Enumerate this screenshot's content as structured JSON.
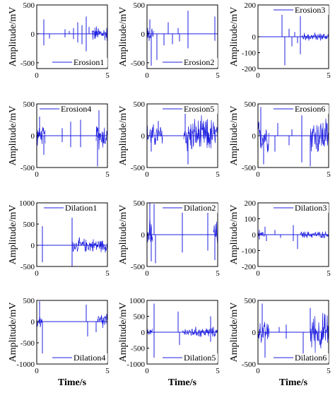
{
  "style": {
    "signal_color": "#1f1fe0",
    "axis_color": "#000000"
  },
  "panel_axis_labels": {
    "xlabel": "Time/s",
    "ylabel": "Amplitude/mV"
  },
  "chart_data": [
    {
      "type": "line",
      "legend": "Erosion1",
      "legend_position": "bottom-right",
      "xlim": [
        0,
        5
      ],
      "ylim": [
        -600,
        500
      ],
      "xticks": [
        "0",
        "5"
      ],
      "yticks": [
        {
          "v": 500,
          "t": "500"
        },
        {
          "v": 0,
          "t": "0"
        },
        {
          "v": -500,
          "t": "-500"
        }
      ],
      "xlabel": "",
      "ylabel": "Amplitude/mV",
      "signal": {
        "segments": [
          {
            "x": [
              3.9,
              5
            ],
            "amp": 130
          }
        ],
        "spikes": [
          {
            "x": 0.5,
            "y": 250
          },
          {
            "x": 0.5,
            "y": -200
          },
          {
            "x": 0.9,
            "y": -80
          },
          {
            "x": 2.0,
            "y": 80
          },
          {
            "x": 2.0,
            "y": -60
          },
          {
            "x": 2.3,
            "y": 50
          },
          {
            "x": 2.6,
            "y": 100
          },
          {
            "x": 2.6,
            "y": -90
          },
          {
            "x": 2.9,
            "y": 200
          },
          {
            "x": 2.9,
            "y": -150
          },
          {
            "x": 3.2,
            "y": 150
          },
          {
            "x": 3.2,
            "y": -180
          },
          {
            "x": 3.5,
            "y": 300
          },
          {
            "x": 3.5,
            "y": -300
          },
          {
            "x": 3.7,
            "y": 120
          }
        ]
      }
    },
    {
      "type": "line",
      "legend": "Erosion2",
      "legend_position": "bottom-right",
      "xlim": [
        0,
        5
      ],
      "ylim": [
        -600,
        500
      ],
      "xticks": [
        "0",
        "5"
      ],
      "yticks": [
        {
          "v": 500,
          "t": "500"
        },
        {
          "v": 0,
          "t": "0"
        },
        {
          "v": -500,
          "t": "-500"
        }
      ],
      "xlabel": "",
      "ylabel": "Amplitude/mV",
      "signal": {
        "segments": [
          {
            "x": [
              0,
              0.5
            ],
            "amp": 120
          },
          {
            "x": 4.8,
            "amp": 0
          }
        ],
        "spikes": [
          {
            "x": 0.2,
            "y": 250
          },
          {
            "x": 0.3,
            "y": -550
          },
          {
            "x": 0.7,
            "y": -450
          },
          {
            "x": 1.2,
            "y": -200
          },
          {
            "x": 1.5,
            "y": 200
          },
          {
            "x": 1.8,
            "y": -180
          },
          {
            "x": 2.2,
            "y": 100
          },
          {
            "x": 2.3,
            "y": -130
          },
          {
            "x": 2.9,
            "y": 400
          },
          {
            "x": 2.9,
            "y": -250
          },
          {
            "x": 4.8,
            "y": 300
          },
          {
            "x": 4.8,
            "y": -120
          }
        ]
      }
    },
    {
      "type": "line",
      "legend": "Erosion3",
      "legend_position": "top-right",
      "xlim": [
        0,
        5
      ],
      "ylim": [
        -200,
        200
      ],
      "xticks": [
        "0",
        "5"
      ],
      "yticks": [
        {
          "v": 200,
          "t": "200"
        },
        {
          "v": 0,
          "t": "0"
        },
        {
          "v": -100,
          "t": "-100"
        },
        {
          "v": -200,
          "t": "-200"
        }
      ],
      "xlabel": "",
      "ylabel": "Amplitude/mV",
      "signal": {
        "segments": [
          {
            "x": [
              3.1,
              5
            ],
            "amp": 25
          }
        ],
        "spikes": [
          {
            "x": 1.7,
            "y": 180
          },
          {
            "x": 1.9,
            "y": -180
          },
          {
            "x": 2.2,
            "y": 50
          },
          {
            "x": 2.4,
            "y": -60
          },
          {
            "x": 2.6,
            "y": 30
          },
          {
            "x": 2.8,
            "y": -40
          },
          {
            "x": 3.0,
            "y": 90
          },
          {
            "x": 3.0,
            "y": -110
          },
          {
            "x": 3.0,
            "y": 130
          }
        ]
      }
    },
    {
      "type": "line",
      "legend": "Erosion4",
      "legend_position": "top-left",
      "xlim": [
        0,
        5
      ],
      "ylim": [
        -500,
        500
      ],
      "xticks": [
        "0",
        "5"
      ],
      "yticks": [
        {
          "v": 500,
          "t": "500"
        },
        {
          "v": 0,
          "t": "0"
        },
        {
          "v": -500,
          "t": "-500"
        }
      ],
      "xlabel": "",
      "ylabel": "Amplitude/mV",
      "signal": {
        "segments": [
          {
            "x": [
              0,
              0.6
            ],
            "amp": 130
          },
          {
            "x": [
              4.2,
              5
            ],
            "amp": 200
          }
        ],
        "spikes": [
          {
            "x": 0.2,
            "y": 300
          },
          {
            "x": 0.5,
            "y": -300
          },
          {
            "x": 1.8,
            "y": 120
          },
          {
            "x": 1.8,
            "y": -100
          },
          {
            "x": 2.4,
            "y": 220
          },
          {
            "x": 2.4,
            "y": -180
          },
          {
            "x": 3.1,
            "y": 250
          },
          {
            "x": 3.1,
            "y": -180
          },
          {
            "x": 4.3,
            "y": -480
          },
          {
            "x": 4.4,
            "y": 400
          }
        ]
      }
    },
    {
      "type": "line",
      "legend": "Erosion5",
      "legend_position": "top-right",
      "xlim": [
        0,
        5
      ],
      "ylim": [
        -500,
        500
      ],
      "xticks": [
        "0",
        "5"
      ],
      "yticks": [
        {
          "v": 500,
          "t": "500"
        },
        {
          "v": 0,
          "t": "0"
        },
        {
          "v": -500,
          "t": "-500"
        }
      ],
      "xlabel": "",
      "ylabel": "Amplitude/mV",
      "signal": {
        "segments": [
          {
            "x": [
              0,
              1.1
            ],
            "amp": 170
          },
          {
            "x": [
              2.6,
              5
            ],
            "amp": 260
          }
        ],
        "spikes": [
          {
            "x": 2.7,
            "y": 450
          },
          {
            "x": 2.9,
            "y": -450
          },
          {
            "x": 0.3,
            "y": -250
          },
          {
            "x": 0.8,
            "y": 230
          }
        ]
      }
    },
    {
      "type": "line",
      "legend": "Erosion6",
      "legend_position": "top-right",
      "xlim": [
        0,
        5
      ],
      "ylim": [
        -500,
        500
      ],
      "xticks": [
        "0",
        "5"
      ],
      "yticks": [
        {
          "v": 500,
          "t": "500"
        },
        {
          "v": 0,
          "t": "0"
        },
        {
          "v": -500,
          "t": "-500"
        }
      ],
      "xlabel": "",
      "ylabel": "Amplitude/mV",
      "signal": {
        "segments": [
          {
            "x": [
              0,
              0.8
            ],
            "amp": 230
          },
          {
            "x": [
              3.7,
              5
            ],
            "amp": 280
          }
        ],
        "spikes": [
          {
            "x": 0.2,
            "y": 450
          },
          {
            "x": 0.4,
            "y": -450
          },
          {
            "x": 1.2,
            "y": -250
          },
          {
            "x": 1.4,
            "y": 200
          },
          {
            "x": 2.2,
            "y": -150
          },
          {
            "x": 2.4,
            "y": 100
          },
          {
            "x": 3.1,
            "y": 320
          },
          {
            "x": 3.1,
            "y": -420
          },
          {
            "x": 3.7,
            "y": -480
          }
        ]
      }
    },
    {
      "type": "line",
      "legend": "Dilation1",
      "legend_position": "top-center",
      "xlim": [
        0,
        5
      ],
      "ylim": [
        -500,
        1000
      ],
      "xticks": [
        "0",
        "5"
      ],
      "yticks": [
        {
          "v": 1000,
          "t": "1000"
        },
        {
          "v": 500,
          "t": "500"
        },
        {
          "v": 0,
          "t": "0"
        },
        {
          "v": -500,
          "t": "-500"
        }
      ],
      "xlabel": "",
      "ylabel": "Amplitude/mV",
      "signal": {
        "segments": [
          {
            "x": [
              2.5,
              5
            ],
            "amp": 150
          }
        ],
        "spikes": [
          {
            "x": 0.4,
            "y": 450
          },
          {
            "x": 0.4,
            "y": -400
          },
          {
            "x": 2.5,
            "y": -500
          },
          {
            "x": 2.5,
            "y": 650
          }
        ]
      }
    },
    {
      "type": "line",
      "legend": "Dilation2",
      "legend_position": "top-right",
      "xlim": [
        0,
        5
      ],
      "ylim": [
        -500,
        500
      ],
      "xticks": [
        "0",
        "5"
      ],
      "yticks": [
        {
          "v": 500,
          "t": "500"
        },
        {
          "v": 0,
          "t": "0"
        },
        {
          "v": -500,
          "t": "-500"
        }
      ],
      "xlabel": "",
      "ylabel": "Amplitude/mV",
      "signal": {
        "segments": [
          {
            "x": [
              0,
              0.4
            ],
            "amp": 250
          },
          {
            "x": [
              4.7,
              5
            ],
            "amp": 200
          }
        ],
        "spikes": [
          {
            "x": 0.2,
            "y": 500
          },
          {
            "x": 0.3,
            "y": -420
          },
          {
            "x": 0.5,
            "y": 480
          },
          {
            "x": 0.6,
            "y": -450
          },
          {
            "x": 2.5,
            "y": 420
          },
          {
            "x": 2.5,
            "y": -280
          },
          {
            "x": 4.3,
            "y": 400
          },
          {
            "x": 4.3,
            "y": -250
          },
          {
            "x": 4.8,
            "y": -400
          }
        ]
      }
    },
    {
      "type": "line",
      "legend": "Dilation3",
      "legend_position": "top-right",
      "xlim": [
        0,
        5
      ],
      "ylim": [
        -200,
        200
      ],
      "xticks": [
        "0",
        "5"
      ],
      "yticks": [
        {
          "v": 200,
          "t": "200"
        },
        {
          "v": 100,
          "t": "100"
        },
        {
          "v": 0,
          "t": "0"
        },
        {
          "v": -100,
          "t": "-100"
        },
        {
          "v": -200,
          "t": "-200"
        }
      ],
      "xlabel": "",
      "ylabel": "Amplitude/mV",
      "signal": {
        "segments": [
          {
            "x": [
              3.0,
              5
            ],
            "amp": 20
          },
          {
            "x": [
              0,
              0.5
            ],
            "amp": 15
          }
        ],
        "spikes": [
          {
            "x": 0.1,
            "y": 30
          },
          {
            "x": 0.1,
            "y": -30
          },
          {
            "x": 0.5,
            "y": 50
          },
          {
            "x": 0.6,
            "y": -40
          },
          {
            "x": 1.2,
            "y": 30
          },
          {
            "x": 1.6,
            "y": -20
          },
          {
            "x": 2.5,
            "y": 60
          },
          {
            "x": 2.5,
            "y": -40
          },
          {
            "x": 2.8,
            "y": -90
          }
        ]
      }
    },
    {
      "type": "line",
      "legend": "Dilation4",
      "legend_position": "bottom-right",
      "xlim": [
        0,
        5
      ],
      "ylim": [
        -1000,
        500
      ],
      "xticks": [
        "0",
        "5"
      ],
      "yticks": [
        {
          "v": 500,
          "t": "500"
        },
        {
          "v": 0,
          "t": "0"
        },
        {
          "v": -500,
          "t": "-500"
        },
        {
          "v": -1000,
          "t": "-1000"
        }
      ],
      "xlabel": "Time/s",
      "ylabel": "Amplitude/mV",
      "signal": {
        "segments": [
          {
            "x": [
              0,
              0.4
            ],
            "amp": 150
          },
          {
            "x": [
              4.3,
              5
            ],
            "amp": 200
          }
        ],
        "spikes": [
          {
            "x": 0.2,
            "y": 480
          },
          {
            "x": 0.4,
            "y": -750
          },
          {
            "x": 3.5,
            "y": 400
          },
          {
            "x": 3.6,
            "y": -350
          },
          {
            "x": 4.2,
            "y": -250
          }
        ]
      }
    },
    {
      "type": "line",
      "legend": "Dilation5",
      "legend_position": "bottom-right",
      "xlim": [
        0,
        5
      ],
      "ylim": [
        -1000,
        1000
      ],
      "xticks": [
        "0",
        "5"
      ],
      "yticks": [
        {
          "v": 1000,
          "t": "1000"
        },
        {
          "v": 500,
          "t": "500"
        },
        {
          "v": 0,
          "t": "0"
        },
        {
          "v": -500,
          "t": "-500"
        },
        {
          "v": -1000,
          "t": "-1000"
        }
      ],
      "xlabel": "Time/s",
      "ylabel": "Amplitude/mV",
      "signal": {
        "segments": [
          {
            "x": [
              0,
              0.4
            ],
            "amp": 100
          },
          {
            "x": [
              2.5,
              5
            ],
            "amp": 150
          }
        ],
        "spikes": [
          {
            "x": 0.5,
            "y": -800
          },
          {
            "x": 0.5,
            "y": 900
          },
          {
            "x": 2.2,
            "y": 650
          },
          {
            "x": 2.3,
            "y": -400
          },
          {
            "x": 4.5,
            "y": 500
          },
          {
            "x": 4.5,
            "y": -300
          }
        ]
      }
    },
    {
      "type": "line",
      "legend": "Dilation6",
      "legend_position": "bottom-right",
      "xlim": [
        0,
        5
      ],
      "ylim": [
        -500,
        500
      ],
      "xticks": [
        "0",
        "5"
      ],
      "yticks": [
        {
          "v": 500,
          "t": "500"
        },
        {
          "v": 0,
          "t": "0"
        },
        {
          "v": -500,
          "t": "-500"
        }
      ],
      "xlabel": "Time/s",
      "ylabel": "Amplitude/mV",
      "signal": {
        "segments": [
          {
            "x": [
              0,
              0.8
            ],
            "amp": 150
          },
          {
            "x": [
              3.7,
              5
            ],
            "amp": 280
          }
        ],
        "spikes": [
          {
            "x": 0.3,
            "y": 450
          },
          {
            "x": 0.5,
            "y": -400
          },
          {
            "x": 1.5,
            "y": 80
          },
          {
            "x": 2.0,
            "y": 120
          },
          {
            "x": 2.0,
            "y": -100
          },
          {
            "x": 3.2,
            "y": -480
          },
          {
            "x": 3.7,
            "y": 380
          }
        ]
      }
    }
  ]
}
